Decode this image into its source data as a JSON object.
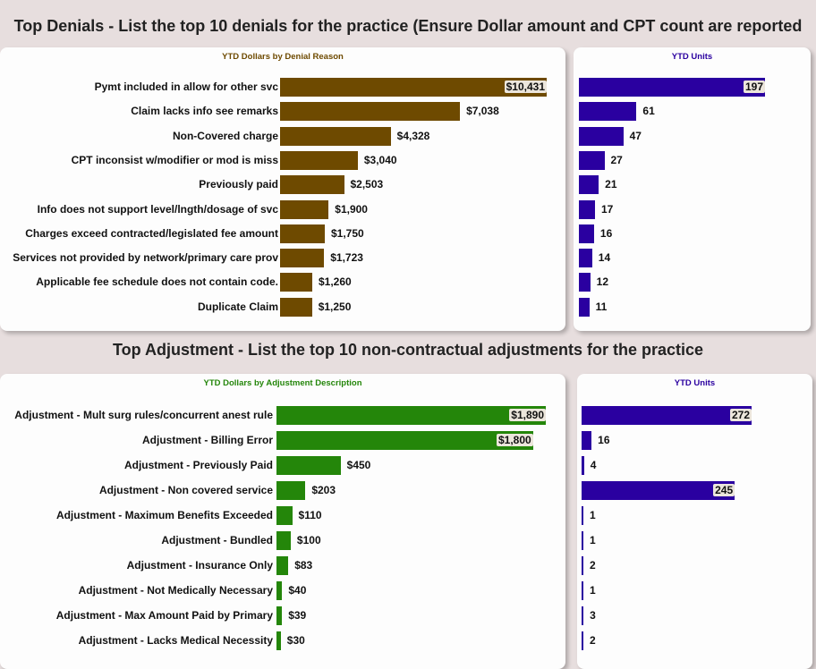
{
  "titles": {
    "denials": "Top Denials - List the top 10 denials for the practice (Ensure Dollar amount and CPT count are reported",
    "adjustments": "Top Adjustment - List the top 10 non-contractual adjustments for the practice"
  },
  "chart_data": [
    {
      "type": "bar",
      "title": "YTD Dollars by Denial Reason",
      "orientation": "horizontal",
      "color": "#6e4a00",
      "categories": [
        "Pymt included in allow for other svc",
        "Claim lacks info see remarks",
        "Non-Covered charge",
        "CPT inconsist w/modifier or mod is miss",
        "Previously paid",
        "Info does not support level/lngth/dosage of svc",
        "Charges exceed contracted/legislated fee amount",
        "Services not provided by network/primary care prov",
        "Applicable fee schedule does not contain code.",
        "Duplicate Claim"
      ],
      "values": [
        10431,
        7038,
        4328,
        3040,
        2503,
        1900,
        1750,
        1723,
        1260,
        1250
      ],
      "labels": [
        "$10,431",
        "$7,038",
        "$4,328",
        "$3,040",
        "$2,503",
        "$1,900",
        "$1,750",
        "$1,723",
        "$1,260",
        "$1,250"
      ]
    },
    {
      "type": "bar",
      "title": "YTD Units",
      "orientation": "horizontal",
      "color": "#2a00a0",
      "values": [
        197,
        61,
        47,
        27,
        21,
        17,
        16,
        14,
        12,
        11
      ],
      "labels": [
        "197",
        "61",
        "47",
        "27",
        "21",
        "17",
        "16",
        "14",
        "12",
        "11"
      ]
    },
    {
      "type": "bar",
      "title": "YTD Dollars by Adjustment Description",
      "orientation": "horizontal",
      "color": "#24860a",
      "categories": [
        "Adjustment - Mult surg rules/concurrent anest rule",
        "Adjustment - Billing Error",
        "Adjustment - Previously Paid",
        "Adjustment - Non covered service",
        "Adjustment - Maximum Benefits Exceeded",
        "Adjustment - Bundled",
        "Adjustment - Insurance Only",
        "Adjustment - Not Medically Necessary",
        "Adjustment - Max Amount Paid by Primary",
        "Adjustment - Lacks Medical Necessity"
      ],
      "values": [
        1890,
        1800,
        450,
        203,
        110,
        100,
        83,
        40,
        39,
        30
      ],
      "labels": [
        "$1,890",
        "$1,800",
        "$450",
        "$203",
        "$110",
        "$100",
        "$83",
        "$40",
        "$39",
        "$30"
      ]
    },
    {
      "type": "bar",
      "title": "YTD Units",
      "orientation": "horizontal",
      "color": "#2a00a0",
      "values": [
        272,
        16,
        4,
        245,
        1,
        1,
        2,
        1,
        3,
        2
      ],
      "labels": [
        "272",
        "16",
        "4",
        "245",
        "1",
        "1",
        "2",
        "1",
        "3",
        "2"
      ]
    }
  ]
}
